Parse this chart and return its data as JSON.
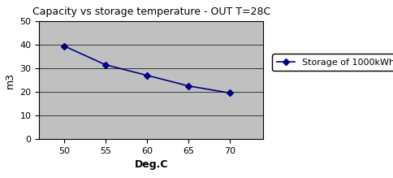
{
  "title": "Capacity vs storage temperature - OUT T=28C",
  "xlabel": "Deg.C",
  "ylabel": "m3",
  "x": [
    50,
    55,
    60,
    65,
    70
  ],
  "y": [
    39.5,
    31.5,
    27.0,
    22.5,
    19.5
  ],
  "xlim": [
    47,
    74
  ],
  "ylim": [
    0,
    50
  ],
  "xticks": [
    50,
    55,
    60,
    65,
    70
  ],
  "yticks": [
    0,
    10,
    20,
    30,
    40,
    50
  ],
  "line_color": "#00008B",
  "marker": "D",
  "marker_size": 4,
  "marker_color": "#00008B",
  "legend_label": "Storage of 1000kWh",
  "plot_bg_color": "#C0C0C0",
  "fig_bg_color": "#FFFFFF",
  "title_fontsize": 9,
  "axis_label_fontsize": 9,
  "tick_fontsize": 8,
  "legend_fontsize": 8,
  "linewidth": 1.2
}
